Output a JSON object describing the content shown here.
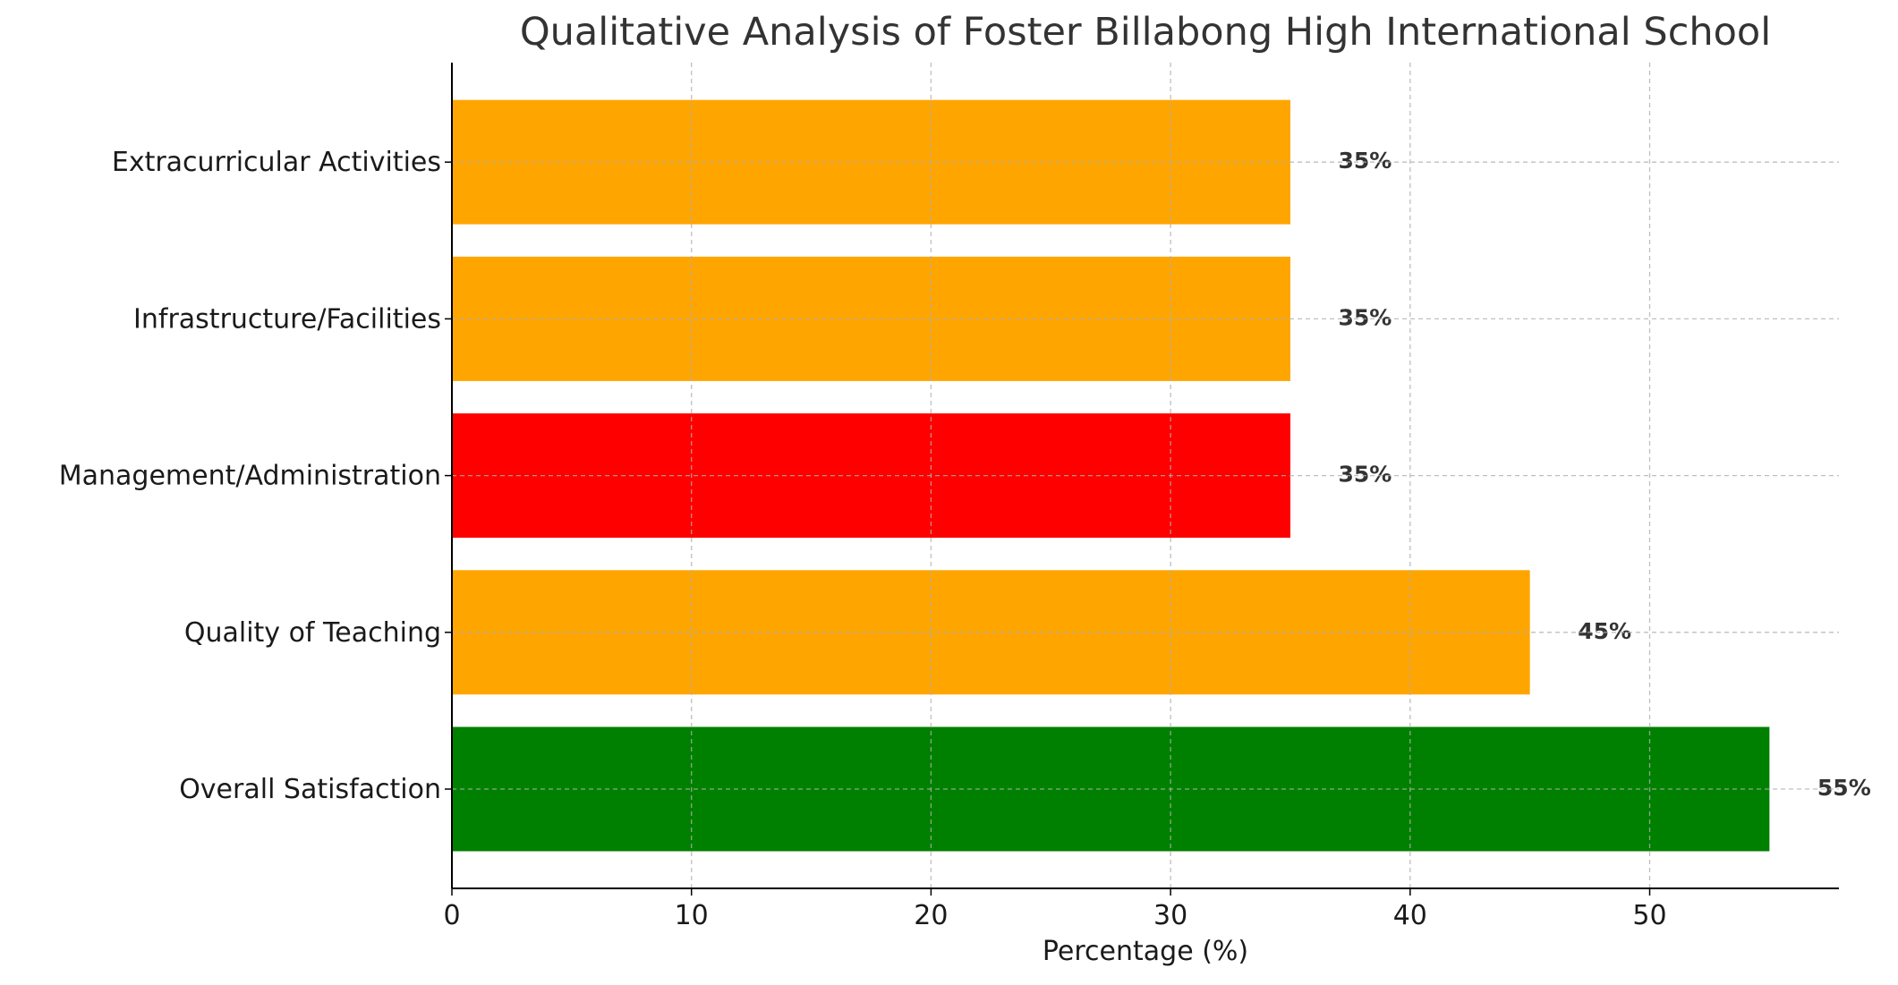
{
  "chart_data": {
    "type": "bar",
    "orientation": "horizontal",
    "title": "Qualitative Analysis of Foster Billabong High International School",
    "xlabel": "Percentage (%)",
    "ylabel": "",
    "categories": [
      "Overall Satisfaction",
      "Quality of Teaching",
      "Management/Administration",
      "Infrastructure/Facilities",
      "Extracurricular Activities"
    ],
    "values": [
      55,
      45,
      35,
      35,
      35
    ],
    "colors": [
      "#008000",
      "#FFA500",
      "#FF0000",
      "#FFA500",
      "#FFA500"
    ],
    "data_labels": [
      "55%",
      "45%",
      "35%",
      "35%",
      "35%"
    ],
    "xlim": [
      0,
      57.9
    ],
    "xticks": [
      0,
      10,
      20,
      30,
      40,
      50
    ],
    "xtick_labels": [
      "0",
      "10",
      "20",
      "30",
      "40",
      "50"
    ],
    "grid": true,
    "grid_style": "dashed"
  }
}
